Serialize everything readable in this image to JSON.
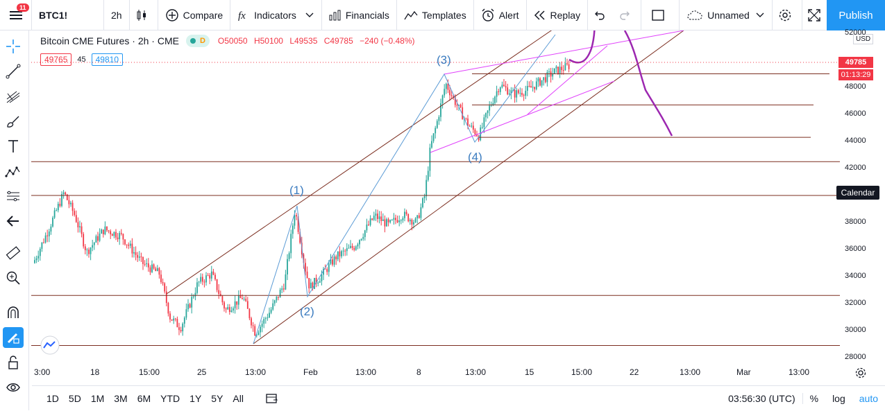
{
  "topbar": {
    "notification_count": "11",
    "symbol": "BTC1!",
    "interval": "2h",
    "compare_label": "Compare",
    "indicators_label": "Indicators",
    "financials_label": "Financials",
    "templates_label": "Templates",
    "alert_label": "Alert",
    "replay_label": "Replay",
    "layout_name": "Unnamed",
    "publish_label": "Publish"
  },
  "legend": {
    "title": "Bitcoin CME Futures · 2h · CME",
    "delay_badge": "D",
    "open": "O50050",
    "high": "H50100",
    "low": "L49535",
    "close": "C49785",
    "change": "−240 (−0.48%)",
    "bid": "49765",
    "spread": "45",
    "ask": "49810"
  },
  "price_axis": {
    "currency": "USD",
    "labels": [
      "52000",
      "48000",
      "46000",
      "44000",
      "42000",
      "38000",
      "36000",
      "34000",
      "32000",
      "30000",
      "28000"
    ],
    "current_price": "49785",
    "countdown": "01:13:29",
    "calendar_label": "Calendar"
  },
  "time_axis": {
    "labels": [
      "3:00",
      "18",
      "15:00",
      "25",
      "13:00",
      "Feb",
      "13:00",
      "8",
      "13:00",
      "15",
      "15:00",
      "22",
      "13:00",
      "Mar",
      "13:00"
    ]
  },
  "wave_labels": [
    "(1)",
    "(2)",
    "(3)",
    "(4)"
  ],
  "bottombar": {
    "ranges": [
      "1D",
      "5D",
      "1M",
      "3M",
      "6M",
      "YTD",
      "1Y",
      "5Y",
      "All"
    ],
    "clock": "03:56:30 (UTC)",
    "percent": "%",
    "log": "log",
    "auto": "auto"
  },
  "colors": {
    "accent": "#2196f3",
    "down": "#f23645",
    "up": "#26a69a",
    "channel": "#7b2d1f",
    "wedge": "#e040fb",
    "projection": "#9c27b0",
    "wave": "#3a7bbf"
  }
}
